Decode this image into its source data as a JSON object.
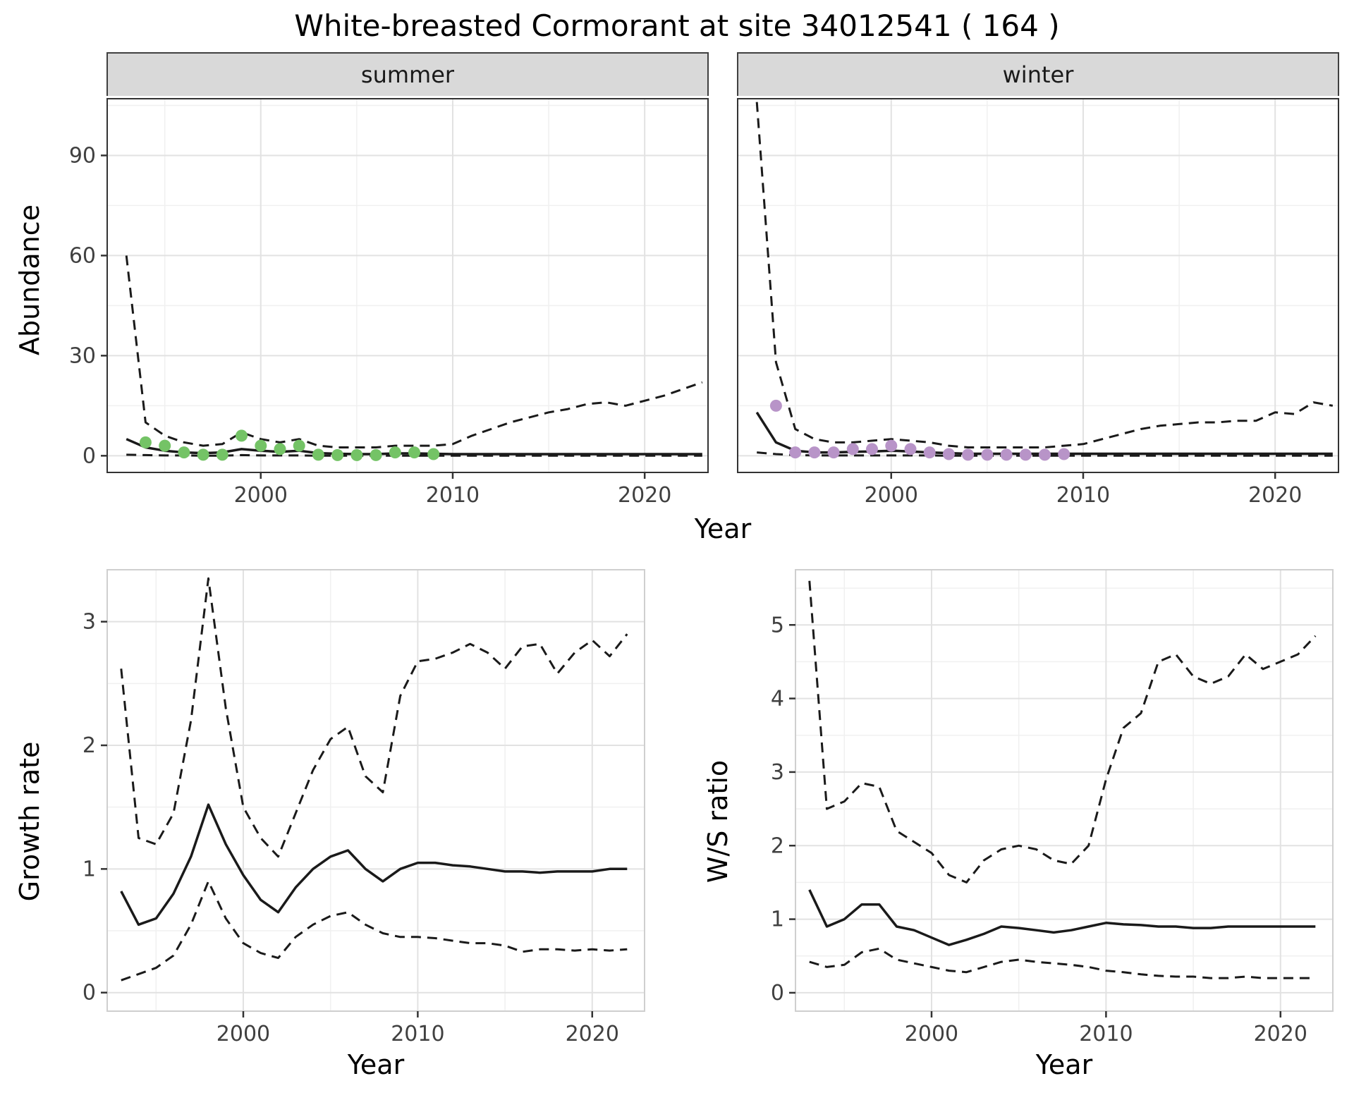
{
  "title": "White-breasted Cormorant at site 34012541 ( 164 )",
  "colors": {
    "summer_points": "#74C366",
    "winter_points": "#B894C8",
    "line": "#1a1a1a",
    "strip_background": "#d9d9d9",
    "major_grid": "#e2e2e2",
    "minor_grid": "#f0f0f0"
  },
  "chart_data": [
    {
      "name": "abundance-summer",
      "type": "line",
      "facet_label": "summer",
      "xlabel": "Year",
      "ylabel": "Abundance",
      "xlim": [
        1992,
        2023.3
      ],
      "ylim": [
        -5,
        107
      ],
      "xticks": [
        2000,
        2010,
        2020
      ],
      "yticks": [
        0,
        30,
        60,
        90
      ],
      "show_ytick_labels": true,
      "x": [
        1993,
        1994,
        1995,
        1996,
        1997,
        1998,
        1999,
        2000,
        2001,
        2002,
        2003,
        2004,
        2005,
        2006,
        2007,
        2008,
        2009,
        2010,
        2011,
        2012,
        2013,
        2014,
        2015,
        2016,
        2017,
        2018,
        2019,
        2020,
        2021,
        2022,
        2023
      ],
      "series": [
        {
          "name": "upper-ci",
          "style": "dashed",
          "values": [
            60,
            10,
            6,
            4,
            3,
            3.5,
            7,
            5,
            4,
            5,
            3,
            2.5,
            2.5,
            2.5,
            3,
            3,
            3,
            3.5,
            6,
            8,
            10,
            11.5,
            13,
            14,
            15.5,
            16,
            15,
            16.5,
            18,
            20,
            22
          ]
        },
        {
          "name": "median",
          "style": "solid",
          "values": [
            5,
            2.5,
            1.5,
            1,
            0.8,
            1,
            2,
            1.5,
            1.2,
            1.5,
            0.8,
            0.6,
            0.5,
            0.5,
            0.7,
            0.7,
            0.6,
            0.5,
            0.5,
            0.5,
            0.5,
            0.5,
            0.5,
            0.5,
            0.5,
            0.5,
            0.5,
            0.5,
            0.5,
            0.5,
            0.5
          ]
        },
        {
          "name": "lower-ci",
          "style": "dashed",
          "values": [
            0.3,
            0.2,
            0.1,
            0.1,
            0,
            0,
            0.2,
            0.1,
            0.1,
            0.1,
            0,
            0,
            0,
            0,
            0,
            0,
            0,
            0,
            0,
            0,
            0,
            0,
            0,
            0,
            0,
            0,
            0,
            0,
            0,
            0,
            0
          ]
        }
      ],
      "points": {
        "name": "observed-counts",
        "color": "#74C366",
        "x": [
          1994,
          1995,
          1996,
          1997,
          1998,
          1999,
          2000,
          2001,
          2002,
          2003,
          2004,
          2005,
          2006,
          2007,
          2008,
          2009
        ],
        "y": [
          4,
          3,
          1,
          0.3,
          0.3,
          6,
          3,
          2,
          3,
          0.3,
          0.2,
          0.2,
          0.2,
          1,
          1,
          0.5
        ]
      }
    },
    {
      "name": "abundance-winter",
      "type": "line",
      "facet_label": "winter",
      "xlabel": "Year",
      "ylabel": "Abundance",
      "xlim": [
        1992,
        2023.3
      ],
      "ylim": [
        -5,
        107
      ],
      "xticks": [
        2000,
        2010,
        2020
      ],
      "yticks": [
        0,
        30,
        60,
        90
      ],
      "show_ytick_labels": false,
      "x": [
        1993,
        1994,
        1995,
        1996,
        1997,
        1998,
        1999,
        2000,
        2001,
        2002,
        2003,
        2004,
        2005,
        2006,
        2007,
        2008,
        2009,
        2010,
        2011,
        2012,
        2013,
        2014,
        2015,
        2016,
        2017,
        2018,
        2019,
        2020,
        2021,
        2022,
        2023
      ],
      "series": [
        {
          "name": "upper-ci",
          "style": "dashed",
          "values": [
            106,
            28,
            8,
            5,
            4,
            4,
            4.5,
            5,
            4.5,
            4,
            3,
            2.5,
            2.5,
            2.5,
            2.5,
            2.5,
            3,
            3.5,
            5,
            6.5,
            8,
            9,
            9.5,
            10,
            10,
            10.5,
            10.5,
            13,
            12.5,
            16,
            15
          ]
        },
        {
          "name": "median",
          "style": "solid",
          "values": [
            13,
            4,
            1.5,
            1,
            1,
            1.2,
            1.3,
            1.5,
            1.3,
            1,
            0.8,
            0.6,
            0.6,
            0.6,
            0.6,
            0.6,
            0.6,
            0.6,
            0.6,
            0.6,
            0.6,
            0.6,
            0.6,
            0.6,
            0.6,
            0.6,
            0.6,
            0.6,
            0.6,
            0.6,
            0.6
          ]
        },
        {
          "name": "lower-ci",
          "style": "dashed",
          "values": [
            1,
            0.5,
            0.2,
            0.1,
            0.1,
            0.1,
            0.1,
            0.1,
            0.1,
            0.1,
            0,
            0,
            0,
            0,
            0,
            0,
            0,
            0,
            0,
            0,
            0,
            0,
            0,
            0,
            0,
            0,
            0,
            0,
            0,
            0,
            0
          ]
        }
      ],
      "points": {
        "name": "observed-counts",
        "color": "#B894C8",
        "x": [
          1994,
          1995,
          1996,
          1997,
          1998,
          1999,
          2000,
          2001,
          2002,
          2003,
          2004,
          2005,
          2006,
          2007,
          2008,
          2009
        ],
        "y": [
          15,
          1,
          1,
          1,
          2,
          2,
          3,
          2,
          1,
          0.5,
          0.3,
          0.3,
          0.3,
          0.3,
          0.3,
          0.5
        ]
      }
    },
    {
      "name": "growth-rate",
      "type": "line",
      "xlabel": "Year",
      "ylabel": "Growth rate",
      "xlim": [
        1992.2,
        2023
      ],
      "ylim": [
        -0.15,
        3.42
      ],
      "xticks": [
        2000,
        2010,
        2020
      ],
      "yticks": [
        0,
        1,
        2,
        3
      ],
      "show_ytick_labels": true,
      "x": [
        1993,
        1994,
        1995,
        1996,
        1997,
        1998,
        1999,
        2000,
        2001,
        2002,
        2003,
        2004,
        2005,
        2006,
        2007,
        2008,
        2009,
        2010,
        2011,
        2012,
        2013,
        2014,
        2015,
        2016,
        2017,
        2018,
        2019,
        2020,
        2021,
        2022
      ],
      "series": [
        {
          "name": "upper-ci",
          "style": "dashed",
          "values": [
            2.62,
            1.25,
            1.2,
            1.45,
            2.2,
            3.35,
            2.3,
            1.5,
            1.25,
            1.1,
            1.45,
            1.8,
            2.05,
            2.15,
            1.75,
            1.62,
            2.4,
            2.68,
            2.7,
            2.75,
            2.82,
            2.75,
            2.62,
            2.8,
            2.82,
            2.58,
            2.75,
            2.85,
            2.72,
            2.9
          ]
        },
        {
          "name": "median",
          "style": "solid",
          "values": [
            0.82,
            0.55,
            0.6,
            0.8,
            1.1,
            1.52,
            1.2,
            0.95,
            0.75,
            0.65,
            0.85,
            1.0,
            1.1,
            1.15,
            1.0,
            0.9,
            1.0,
            1.05,
            1.05,
            1.03,
            1.02,
            1.0,
            0.98,
            0.98,
            0.97,
            0.98,
            0.98,
            0.98,
            1.0,
            1.0
          ]
        },
        {
          "name": "lower-ci",
          "style": "dashed",
          "values": [
            0.1,
            0.15,
            0.2,
            0.3,
            0.55,
            0.9,
            0.6,
            0.4,
            0.32,
            0.28,
            0.45,
            0.55,
            0.62,
            0.65,
            0.55,
            0.48,
            0.45,
            0.45,
            0.44,
            0.42,
            0.4,
            0.4,
            0.38,
            0.33,
            0.35,
            0.35,
            0.34,
            0.35,
            0.34,
            0.35
          ]
        }
      ]
    },
    {
      "name": "winter-summer-ratio",
      "type": "line",
      "xlabel": "Year",
      "ylabel": "W/S ratio",
      "xlim": [
        1992.2,
        2023
      ],
      "ylim": [
        -0.25,
        5.75
      ],
      "xticks": [
        2000,
        2010,
        2020
      ],
      "yticks": [
        0,
        1,
        2,
        3,
        4,
        5
      ],
      "show_ytick_labels": true,
      "x": [
        1993,
        1994,
        1995,
        1996,
        1997,
        1998,
        1999,
        2000,
        2001,
        2002,
        2003,
        2004,
        2005,
        2006,
        2007,
        2008,
        2009,
        2010,
        2011,
        2012,
        2013,
        2014,
        2015,
        2016,
        2017,
        2018,
        2019,
        2020,
        2021,
        2022
      ],
      "series": [
        {
          "name": "upper-ci",
          "style": "dashed",
          "values": [
            5.6,
            2.5,
            2.6,
            2.85,
            2.8,
            2.2,
            2.05,
            1.9,
            1.6,
            1.5,
            1.8,
            1.95,
            2.0,
            1.95,
            1.8,
            1.75,
            2.0,
            2.9,
            3.6,
            3.8,
            4.5,
            4.6,
            4.3,
            4.2,
            4.3,
            4.6,
            4.4,
            4.5,
            4.6,
            4.85
          ]
        },
        {
          "name": "median",
          "style": "solid",
          "values": [
            1.4,
            0.9,
            1.0,
            1.2,
            1.2,
            0.9,
            0.85,
            0.75,
            0.65,
            0.72,
            0.8,
            0.9,
            0.88,
            0.85,
            0.82,
            0.85,
            0.9,
            0.95,
            0.93,
            0.92,
            0.9,
            0.9,
            0.88,
            0.88,
            0.9,
            0.9,
            0.9,
            0.9,
            0.9,
            0.9
          ]
        },
        {
          "name": "lower-ci",
          "style": "dashed",
          "values": [
            0.42,
            0.35,
            0.38,
            0.55,
            0.6,
            0.45,
            0.4,
            0.35,
            0.3,
            0.28,
            0.35,
            0.42,
            0.45,
            0.42,
            0.4,
            0.38,
            0.35,
            0.3,
            0.28,
            0.25,
            0.23,
            0.22,
            0.22,
            0.2,
            0.2,
            0.22,
            0.2,
            0.2,
            0.2,
            0.2
          ]
        }
      ]
    }
  ]
}
